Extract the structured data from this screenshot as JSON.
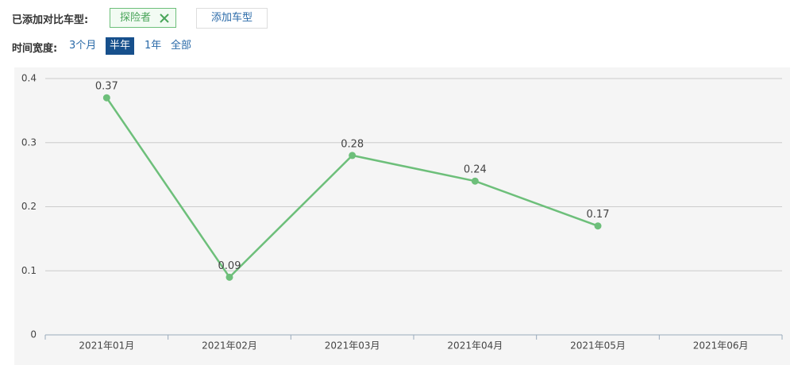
{
  "toolbar": {
    "added_label": "已添加对比车型:",
    "tag": "探险者",
    "add_button": "添加车型",
    "range_label": "时间宽度:",
    "ranges": [
      "3个月",
      "半年",
      "1年",
      "全部"
    ],
    "active_range": 1
  },
  "chart_data": {
    "type": "line",
    "categories": [
      "2021年01月",
      "2021年02月",
      "2021年03月",
      "2021年04月",
      "2021年05月",
      "2021年06月"
    ],
    "values": [
      0.37,
      0.09,
      0.28,
      0.24,
      0.17,
      null
    ],
    "color": "#6dbf7a",
    "ylim": [
      0,
      0.4
    ],
    "yticks": [
      0,
      0.1,
      0.2,
      0.3,
      0.4
    ],
    "grid": true
  }
}
